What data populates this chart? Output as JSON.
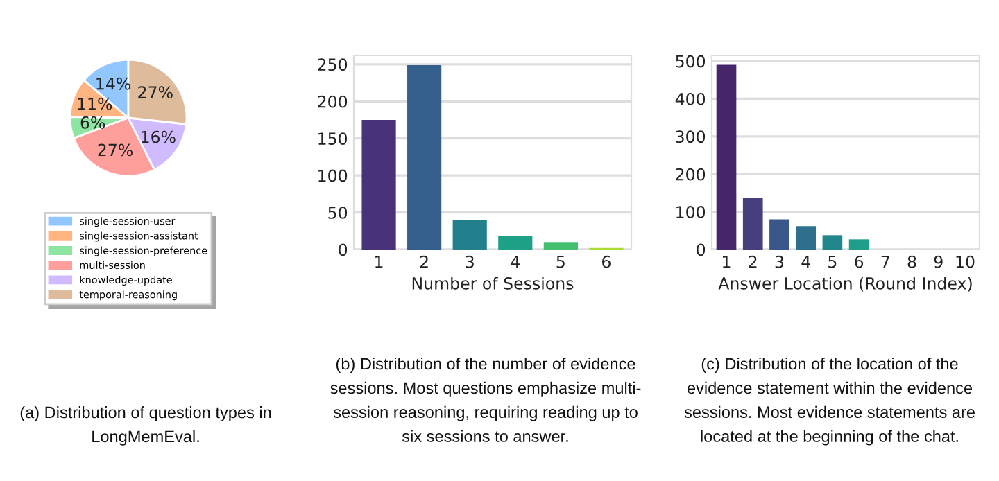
{
  "chart_data": [
    {
      "type": "pie",
      "categories": [
        "single-session-user",
        "single-session-assistant",
        "single-session-preference",
        "multi-session",
        "knowledge-update",
        "temporal-reasoning"
      ],
      "values": [
        14,
        11,
        6,
        27,
        16,
        27
      ],
      "value_labels": [
        "14%",
        "11%",
        "6%",
        "27%",
        "16%",
        "27%"
      ],
      "colors": [
        "#92c6ff",
        "#ffb482",
        "#8de5a1",
        "#ff9f9b",
        "#d0bbff",
        "#debb9b"
      ],
      "legend": "bottom",
      "annotations": [
        "(a) Distribution of question types in\nLongMemEval."
      ]
    },
    {
      "type": "bar",
      "categories": [
        "1",
        "2",
        "3",
        "4",
        "5",
        "6"
      ],
      "values": [
        175,
        249,
        40,
        18,
        10,
        2
      ],
      "colors": [
        "#48327a",
        "#355f8d",
        "#21808b",
        "#1fa188",
        "#44bf70",
        "#a8db34"
      ],
      "xlabel": "Number of Sessions",
      "ylim": [
        0,
        262
      ],
      "yticks": [
        0,
        50,
        100,
        150,
        200,
        250
      ],
      "grid": "y",
      "annotations": [
        "(b) Distribution of the number of evidence\nsessions. Most questions emphasize multi-\nsession reasoning, requiring reading up to\nsix sessions to answer."
      ]
    },
    {
      "type": "bar",
      "categories": [
        "1",
        "2",
        "3",
        "4",
        "5",
        "6",
        "7",
        "8",
        "9",
        "10"
      ],
      "values": [
        490,
        138,
        80,
        62,
        38,
        27,
        0,
        0,
        0,
        0
      ],
      "colors": [
        "#46256b",
        "#453f7e",
        "#3a578b",
        "#2e6f8e",
        "#22868d",
        "#1f9e89",
        "#35b779",
        "#6ccd5a",
        "#b5de2b",
        "#fde725"
      ],
      "xlabel": "Answer Location (Round Index)",
      "ylim": [
        0,
        515
      ],
      "yticks": [
        0,
        100,
        200,
        300,
        400,
        500
      ],
      "grid": "y",
      "annotations": [
        "(c) Distribution of the location of the\nevidence statement within the evidence\nsessions. Most evidence statements are\nlocated at the beginning of the chat."
      ]
    }
  ]
}
